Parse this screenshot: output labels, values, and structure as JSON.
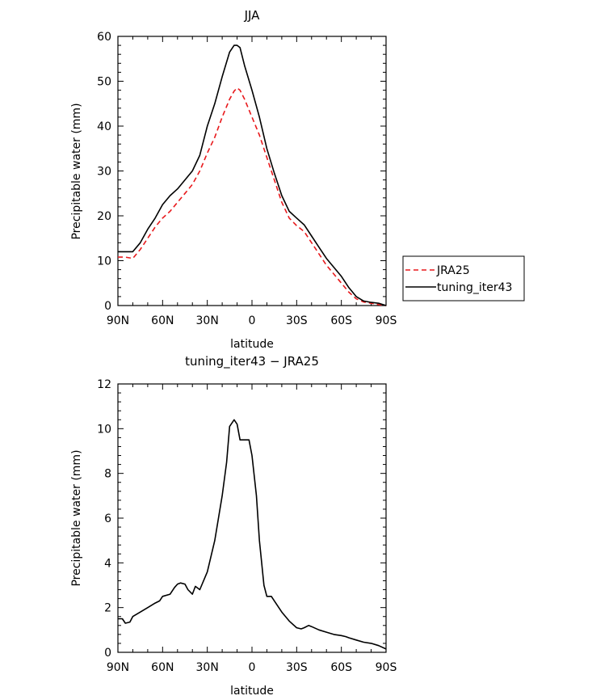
{
  "chart_data": [
    {
      "type": "line",
      "title": "JJA",
      "xlabel": "latitude",
      "ylabel": "Precipitable water (mm)",
      "xlim": [
        90,
        -90
      ],
      "ylim": [
        0,
        60
      ],
      "xticks": [
        90,
        60,
        30,
        0,
        -30,
        -60,
        -90
      ],
      "xtick_labels": [
        "90N",
        "60N",
        "30N",
        "0",
        "30S",
        "60S",
        "90S"
      ],
      "yticks": [
        0,
        10,
        20,
        30,
        40,
        50,
        60
      ],
      "ytick_labels": [
        "0",
        "10",
        "20",
        "30",
        "40",
        "50",
        "60"
      ],
      "legend": {
        "position": "right",
        "entries": [
          {
            "name": "JRA25",
            "color": "#e8191c",
            "style": "dashed"
          },
          {
            "name": "tuning_iter43",
            "color": "#000000",
            "style": "solid"
          }
        ]
      },
      "series": [
        {
          "name": "JRA25",
          "color": "#e8191c",
          "style": "dashed",
          "x": [
            90,
            85,
            80,
            75,
            70,
            65,
            60,
            55,
            50,
            45,
            40,
            35,
            30,
            25,
            20,
            15,
            12,
            10,
            8,
            5,
            0,
            -5,
            -10,
            -15,
            -20,
            -25,
            -30,
            -35,
            -40,
            -45,
            -50,
            -55,
            -60,
            -65,
            -70,
            -75,
            -80,
            -85,
            -90
          ],
          "values": [
            10.8,
            10.8,
            10.5,
            12.5,
            15.0,
            17.5,
            19.5,
            21.0,
            23.0,
            25.0,
            27.0,
            30.0,
            34.0,
            37.5,
            42.0,
            46.0,
            47.8,
            48.5,
            48.0,
            46.0,
            42.0,
            38.0,
            33.0,
            28.0,
            23.0,
            19.5,
            17.8,
            16.5,
            14.0,
            11.5,
            9.0,
            7.0,
            5.0,
            3.0,
            1.5,
            0.8,
            0.5,
            0.2,
            0.0
          ]
        },
        {
          "name": "tuning_iter43",
          "color": "#000000",
          "style": "solid",
          "x": [
            90,
            85,
            80,
            75,
            70,
            65,
            60,
            55,
            50,
            45,
            40,
            35,
            30,
            25,
            20,
            15,
            12,
            10,
            8,
            5,
            0,
            -5,
            -10,
            -15,
            -20,
            -25,
            -30,
            -35,
            -40,
            -45,
            -50,
            -55,
            -60,
            -65,
            -70,
            -75,
            -80,
            -85,
            -90
          ],
          "values": [
            12.0,
            12.0,
            12.0,
            14.0,
            17.0,
            19.5,
            22.5,
            24.5,
            26.0,
            28.0,
            30.0,
            33.5,
            40.0,
            45.0,
            51.0,
            56.5,
            58.0,
            58.0,
            57.5,
            53.5,
            48.0,
            42.0,
            35.0,
            29.5,
            24.5,
            21.0,
            19.5,
            18.0,
            15.5,
            13.0,
            10.5,
            8.5,
            6.5,
            4.0,
            2.0,
            1.0,
            0.7,
            0.5,
            0.0
          ]
        }
      ]
    },
    {
      "type": "line",
      "title": "tuning_iter43 − JRA25",
      "xlabel": "latitude",
      "ylabel": "Precipitable water (mm)",
      "xlim": [
        90,
        -90
      ],
      "ylim": [
        0,
        12
      ],
      "xticks": [
        90,
        60,
        30,
        0,
        -30,
        -60,
        -90
      ],
      "xtick_labels": [
        "90N",
        "60N",
        "30N",
        "0",
        "30S",
        "60S",
        "90S"
      ],
      "yticks": [
        0,
        2,
        4,
        6,
        8,
        10,
        12
      ],
      "ytick_labels": [
        "0",
        "2",
        "4",
        "6",
        "8",
        "10",
        "12"
      ],
      "series": [
        {
          "name": "tuning_iter43 − JRA25",
          "color": "#000000",
          "style": "solid",
          "x": [
            90,
            87,
            85,
            82,
            80,
            75,
            70,
            65,
            62,
            60,
            55,
            52,
            50,
            48,
            45,
            43,
            40,
            38,
            35,
            30,
            25,
            20,
            17,
            15,
            12,
            10,
            8,
            5,
            2,
            0,
            -3,
            -5,
            -8,
            -10,
            -13,
            -15,
            -20,
            -25,
            -30,
            -33,
            -35,
            -38,
            -40,
            -45,
            -50,
            -55,
            -60,
            -63,
            -65,
            -70,
            -75,
            -80,
            -85,
            -90
          ],
          "values": [
            1.5,
            1.5,
            1.3,
            1.35,
            1.6,
            1.8,
            2.0,
            2.2,
            2.3,
            2.5,
            2.6,
            2.9,
            3.05,
            3.1,
            3.05,
            2.8,
            2.6,
            2.95,
            2.8,
            3.6,
            5.0,
            7.0,
            8.5,
            10.1,
            10.4,
            10.2,
            9.5,
            9.5,
            9.5,
            8.8,
            7.0,
            5.0,
            3.0,
            2.5,
            2.5,
            2.3,
            1.8,
            1.4,
            1.1,
            1.05,
            1.1,
            1.2,
            1.15,
            1.0,
            0.9,
            0.8,
            0.75,
            0.7,
            0.65,
            0.55,
            0.45,
            0.4,
            0.3,
            0.15
          ]
        }
      ]
    }
  ]
}
